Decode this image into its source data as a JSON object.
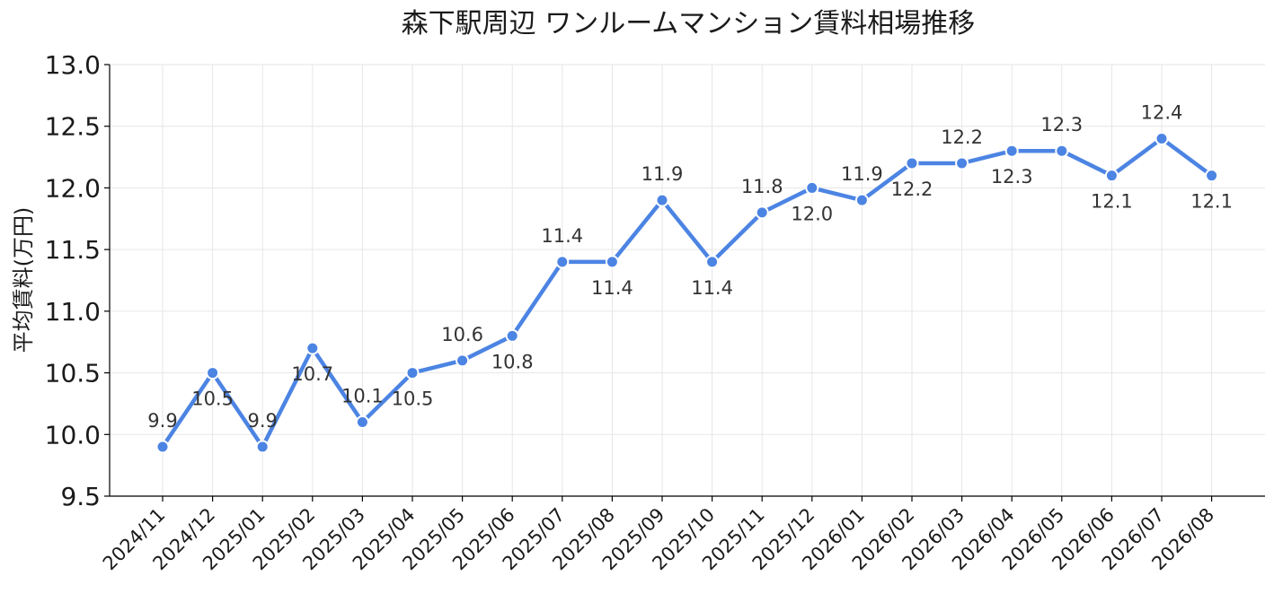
{
  "chart_data": {
    "type": "line",
    "title": "森下駅周辺 ワンルームマンション賃料相場推移",
    "xlabel": "",
    "ylabel": "平均賃料(万円)",
    "ylim": [
      9.5,
      13.0
    ],
    "yticks": [
      "9.5",
      "10.0",
      "10.5",
      "11.0",
      "11.5",
      "12.0",
      "12.5",
      "13.0"
    ],
    "grid": true,
    "categories": [
      "2024/11",
      "2024/12",
      "2025/01",
      "2025/02",
      "2025/03",
      "2025/04",
      "2025/05",
      "2025/06",
      "2025/07",
      "2025/08",
      "2025/09",
      "2025/10",
      "2025/11",
      "2025/12",
      "2026/01",
      "2026/02",
      "2026/03",
      "2026/04",
      "2026/05",
      "2026/06",
      "2026/07",
      "2026/08"
    ],
    "series": [
      {
        "values": [
          9.9,
          10.5,
          9.9,
          10.7,
          10.1,
          10.5,
          10.6,
          10.8,
          11.4,
          11.4,
          11.9,
          11.4,
          11.8,
          12.0,
          11.9,
          12.2,
          12.2,
          12.3,
          12.3,
          12.1,
          12.4,
          12.1
        ],
        "labels": [
          "9.9",
          "10.5",
          "9.9",
          "10.7",
          "10.1",
          "10.5",
          "10.6",
          "10.8",
          "11.4",
          "11.4",
          "11.9",
          "11.4",
          "11.8",
          "12.0",
          "11.9",
          "12.2",
          "12.2",
          "12.3",
          "12.3",
          "12.1",
          "12.4",
          "12.1"
        ],
        "label_position": [
          "above",
          "below",
          "above",
          "below",
          "above",
          "below",
          "above",
          "below",
          "above",
          "below",
          "above",
          "below",
          "above",
          "below",
          "above",
          "below",
          "above",
          "below",
          "above",
          "below",
          "above",
          "below"
        ]
      }
    ],
    "colors": {
      "line": "#4c84e3",
      "marker_edge": "#ffffff"
    }
  }
}
